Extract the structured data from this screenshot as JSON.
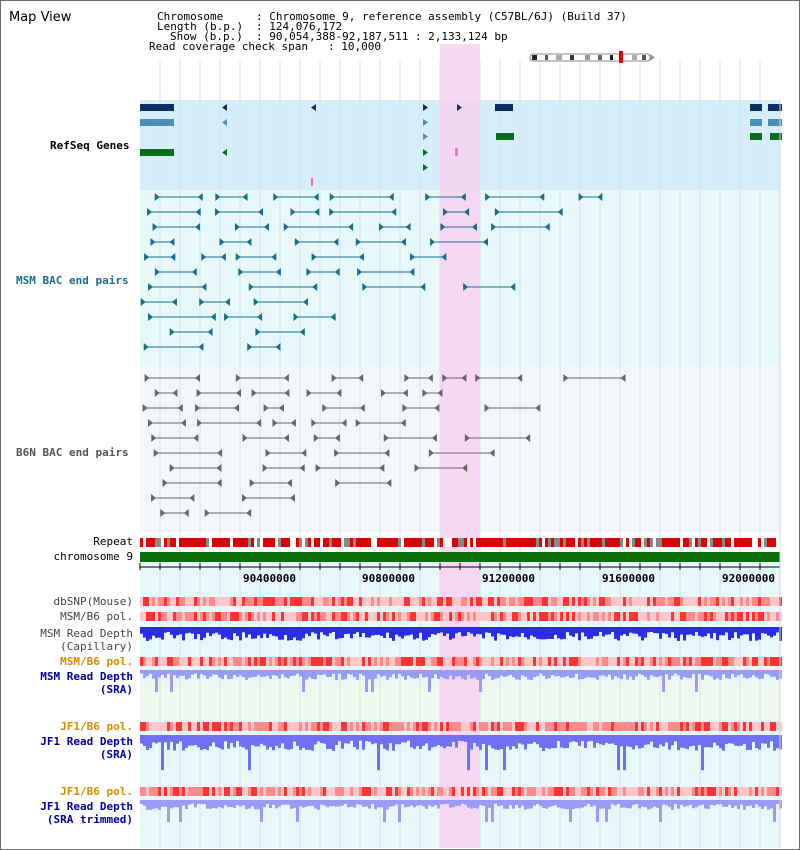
{
  "window_title": "Map View",
  "header": {
    "chromosome_label": "Chromosome",
    "chromosome_value": ": Chromosome 9, reference assembly (C57BL/6J) (Build 37)",
    "length_label": "Length (b.p.)",
    "length_value": ": 124,076,172",
    "show_label": "Show (b.p.)",
    "show_value": ": 90,054,388-92,187,511 : 2,133,124 bp",
    "coverage_label": "Read coverage check span",
    "coverage_value": ": 10,000"
  },
  "tracks": {
    "refseq": "RefSeq Genes",
    "msm_bac": "MSM BAC end pairs",
    "b6n_bac": "B6N BAC end pairs",
    "repeat": "Repeat",
    "chromosome": "chromosome 9",
    "dbsnp": "dbSNP(Mouse)",
    "msm_b6_pol_1": "MSM/B6 pol.",
    "msm_read_depth_cap_1": "MSM Read Depth",
    "msm_read_depth_cap_2": "(Capillary)",
    "msm_b6_pol_2": "MSM/B6 pol.",
    "msm_read_depth_sra_1": "MSM Read Depth",
    "msm_read_depth_sra_2": "(SRA)",
    "jf1_b6_pol_1": "JF1/B6 pol.",
    "jf1_read_depth_sra_1": "JF1 Read Depth",
    "jf1_read_depth_sra_2": "(SRA)",
    "jf1_b6_pol_2": "JF1/B6 pol.",
    "jf1_read_depth_trim_1": "JF1 Read Depth",
    "jf1_read_depth_trim_2": "(SRA trimmed)"
  },
  "ruler": {
    "ticks": [
      "90400000",
      "90800000",
      "91200000",
      "91600000",
      "92000000"
    ]
  },
  "colors": {
    "refseq_bg": "#d6eefa",
    "msm_bg": "#e6f8fa",
    "b6n_bg": "#f3f6fb",
    "highlight": "#f6d2f0",
    "gene_dark": "#0d2f62",
    "gene_mid": "#4a8fb8",
    "gene_green": "#0a6e1a",
    "msm_line": "#1a6e8c",
    "b6n_line": "#666666",
    "label_blue": "#0000a0",
    "label_orange": "#d98c00",
    "chromosome_bar": "#0a6e0a",
    "depth_blue": "#3333ff"
  }
}
